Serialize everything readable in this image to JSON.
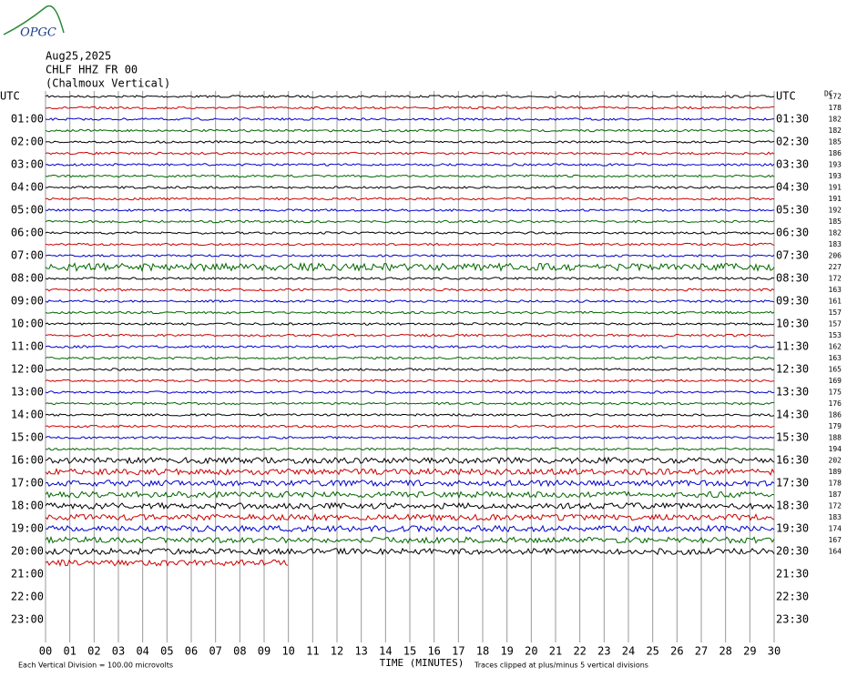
{
  "header": {
    "logo": "OPGC",
    "date": "Aug25,2025",
    "station": "CHLF HHZ FR 00",
    "description": "(Chalmoux Vertical)"
  },
  "left_labels": [
    "UTC",
    "01:00",
    "02:00",
    "03:00",
    "04:00",
    "05:00",
    "06:00",
    "07:00",
    "08:00",
    "09:00",
    "10:00",
    "11:00",
    "12:00",
    "13:00",
    "14:00",
    "15:00",
    "16:00",
    "17:00",
    "18:00",
    "19:00",
    "20:00",
    "21:00",
    "22:00",
    "23:00"
  ],
  "right_labels": [
    "UTC",
    "01:30",
    "02:30",
    "03:30",
    "04:30",
    "05:30",
    "06:30",
    "07:30",
    "08:30",
    "09:30",
    "10:30",
    "11:30",
    "12:30",
    "13:30",
    "14:30",
    "15:30",
    "16:30",
    "17:30",
    "18:30",
    "19:30",
    "20:30",
    "21:30",
    "22:30",
    "23:30"
  ],
  "dc": {
    "label": "DC",
    "values": [
      172,
      178,
      182,
      182,
      185,
      186,
      193,
      193,
      191,
      191,
      192,
      185,
      182,
      183,
      206,
      227,
      172,
      163,
      161,
      157,
      157,
      153,
      162,
      163,
      165,
      169,
      175,
      176,
      186,
      179,
      188,
      194,
      202,
      189,
      178,
      187,
      172,
      183,
      174,
      167,
      164
    ]
  },
  "trace_colors": [
    "#000000",
    "#cc0000",
    "#0000cc",
    "#006600"
  ],
  "x_ticks": [
    "00",
    "01",
    "02",
    "03",
    "04",
    "05",
    "06",
    "07",
    "08",
    "09",
    "10",
    "11",
    "12",
    "13",
    "14",
    "15",
    "16",
    "17",
    "18",
    "19",
    "20",
    "21",
    "22",
    "23",
    "24",
    "25",
    "26",
    "27",
    "28",
    "29",
    "30"
  ],
  "footer": {
    "scale": "Each Vertical Division =  100.00 microvolts",
    "x_label": "TIME (MINUTES)",
    "clip_note": "Traces clipped at plus/minus 5 vertical divisions"
  }
}
